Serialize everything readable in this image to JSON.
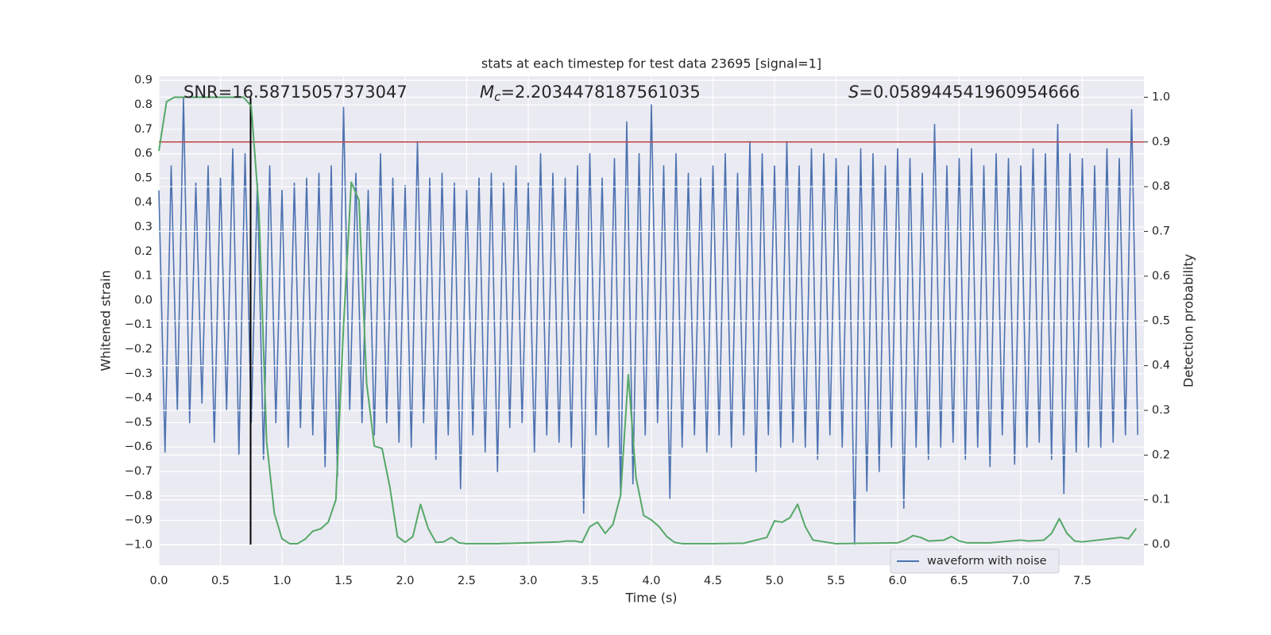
{
  "chart_data": {
    "type": "line",
    "title": "stats at each timestep for test data 23695 [signal=1]",
    "xlabel": "Time (s)",
    "ylabel": "Whitened strain",
    "y2label": "Detection probability",
    "annotations": [
      {
        "text": "SNR=16.58715057373047"
      },
      {
        "symbol": "M",
        "subscript": "c",
        "text": "=2.2034478187561035"
      },
      {
        "symbol": "S",
        "text": "=0.058944541960954666"
      }
    ],
    "xlim": [
      0,
      8.0
    ],
    "xticks": [
      {
        "value": 0,
        "label": "0.0"
      },
      0.5,
      {
        "value": 1,
        "label": "1.0"
      },
      1.5,
      {
        "value": 2,
        "label": "2.0"
      },
      2.5,
      {
        "value": 3,
        "label": "3.0"
      },
      3.5,
      {
        "value": 4,
        "label": "4.0"
      },
      4.5,
      {
        "value": 5,
        "label": "5.0"
      },
      5.5,
      {
        "value": 6,
        "label": "6.0"
      },
      6.5,
      {
        "value": 7,
        "label": "7.0"
      },
      7.5
    ],
    "ylim": [
      -1.083,
      0.917
    ],
    "yticks": [
      {
        "value": -1,
        "label": "−1.0"
      },
      {
        "value": -0.9,
        "label": "−0.9"
      },
      {
        "value": -0.8,
        "label": "−0.8"
      },
      {
        "value": -0.7,
        "label": "−0.7"
      },
      {
        "value": -0.6,
        "label": "−0.6"
      },
      {
        "value": -0.5,
        "label": "−0.5"
      },
      {
        "value": -0.4,
        "label": "−0.4"
      },
      {
        "value": -0.3,
        "label": "−0.3"
      },
      {
        "value": -0.2,
        "label": "−0.2"
      },
      {
        "value": -0.1,
        "label": "−0.1"
      },
      {
        "value": 0,
        "label": "0.0"
      },
      0.1,
      0.2,
      0.3,
      0.4,
      0.5,
      0.6,
      0.7,
      0.8,
      0.9
    ],
    "y2lim": [
      -0.046,
      1.047
    ],
    "y2ticks": [
      {
        "value": 0,
        "label": "0.0"
      },
      0.1,
      0.2,
      0.3,
      0.4,
      0.5,
      0.6,
      0.7,
      0.8,
      0.9,
      {
        "value": 1,
        "label": "1.0"
      }
    ],
    "grid": true,
    "legend": "lower right",
    "series": [
      {
        "name": "waveform with noise",
        "color": "#4c72b0",
        "x": [
          0,
          0.05,
          0.1,
          0.15,
          0.2,
          0.25,
          0.3,
          0.35,
          0.4,
          0.45,
          0.5,
          0.55,
          0.6,
          0.65,
          0.7,
          0.75,
          0.8,
          0.85,
          0.9,
          0.95,
          1,
          1.05,
          1.1,
          1.15,
          1.2,
          1.25,
          1.3,
          1.35,
          1.4,
          1.45,
          1.5,
          1.55,
          1.6,
          1.65,
          1.7,
          1.75,
          1.8,
          1.85,
          1.9,
          1.95,
          2,
          2.05,
          2.1,
          2.15,
          2.2,
          2.25,
          2.3,
          2.35,
          2.4,
          2.45,
          2.5,
          2.55,
          2.6,
          2.65,
          2.7,
          2.75,
          2.8,
          2.85,
          2.9,
          2.95,
          3,
          3.05,
          3.1,
          3.15,
          3.2,
          3.25,
          3.3,
          3.35,
          3.4,
          3.45,
          3.5,
          3.55,
          3.6,
          3.65,
          3.7,
          3.75,
          3.8,
          3.85,
          3.9,
          3.95,
          4,
          4.05,
          4.1,
          4.15,
          4.2,
          4.25,
          4.3,
          4.35,
          4.4,
          4.45,
          4.5,
          4.55,
          4.6,
          4.65,
          4.7,
          4.75,
          4.8,
          4.85,
          4.9,
          4.95,
          5,
          5.05,
          5.1,
          5.15,
          5.2,
          5.25,
          5.3,
          5.35,
          5.4,
          5.45,
          5.5,
          5.55,
          5.6,
          5.65,
          5.7,
          5.75,
          5.8,
          5.85,
          5.9,
          5.95,
          6,
          6.05,
          6.1,
          6.15,
          6.2,
          6.25,
          6.3,
          6.35,
          6.4,
          6.45,
          6.5,
          6.55,
          6.6,
          6.65,
          6.7,
          6.75,
          6.8,
          6.85,
          6.9,
          6.95,
          7,
          7.05,
          7.1,
          7.15,
          7.2,
          7.25,
          7.3,
          7.35,
          7.4,
          7.45,
          7.5,
          7.55,
          7.6,
          7.65,
          7.7,
          7.75,
          7.8,
          7.85,
          7.9,
          7.95
        ],
        "values": [
          0.45,
          -0.62,
          0.55,
          -0.45,
          0.83,
          -0.5,
          0.48,
          -0.42,
          0.55,
          -0.58,
          0.5,
          -0.45,
          0.62,
          -0.63,
          0.6,
          -0.5,
          0.48,
          -0.65,
          0.55,
          -0.5,
          0.45,
          -0.6,
          0.48,
          -0.52,
          0.5,
          -0.55,
          0.52,
          -0.68,
          0.55,
          -0.72,
          0.79,
          -0.45,
          0.52,
          -0.5,
          0.45,
          -0.55,
          0.6,
          -0.5,
          0.5,
          -0.58,
          0.47,
          -0.6,
          0.65,
          -0.5,
          0.5,
          -0.65,
          0.52,
          -0.55,
          0.48,
          -0.77,
          0.45,
          -0.55,
          0.5,
          -0.62,
          0.52,
          -0.7,
          0.48,
          -0.52,
          0.55,
          -0.5,
          0.48,
          -0.62,
          0.6,
          -0.55,
          0.52,
          -0.58,
          0.5,
          -0.6,
          0.55,
          -0.87,
          0.6,
          -0.55,
          0.5,
          -0.6,
          0.58,
          -0.8,
          0.73,
          -0.75,
          0.6,
          -0.55,
          0.8,
          -0.5,
          0.55,
          -0.81,
          0.6,
          -0.6,
          0.52,
          -0.55,
          0.5,
          -0.62,
          0.55,
          -0.55,
          0.6,
          -0.6,
          0.52,
          -0.55,
          0.65,
          -0.7,
          0.6,
          -0.55,
          0.55,
          -0.6,
          0.65,
          -0.58,
          0.55,
          -0.6,
          0.62,
          -0.65,
          0.6,
          -0.55,
          0.58,
          -0.6,
          0.55,
          -1.0,
          0.62,
          -0.78,
          0.6,
          -0.7,
          0.55,
          -0.6,
          0.62,
          -0.85,
          0.58,
          -0.6,
          0.52,
          -0.65,
          0.72,
          -0.6,
          0.55,
          -0.58,
          0.58,
          -0.65,
          0.62,
          -0.6,
          0.55,
          -0.68,
          0.6,
          -0.55,
          0.58,
          -0.67,
          0.55,
          -0.6,
          0.62,
          -0.58,
          0.6,
          -0.65,
          0.72,
          -0.79,
          0.6,
          -0.62,
          0.58,
          -0.6,
          0.55,
          -0.6,
          0.62,
          -0.58,
          0.58,
          -0.55,
          0.78,
          -0.55
        ]
      },
      {
        "color": "#55a868",
        "axis": "y2",
        "x": [
          0,
          0.0625,
          0.125,
          0.25,
          0.5,
          0.6875,
          0.75,
          0.8125,
          0.875,
          0.9375,
          1,
          1.0625,
          1.125,
          1.1875,
          1.25,
          1.3125,
          1.375,
          1.4375,
          1.5,
          1.5625,
          1.625,
          1.6875,
          1.75,
          1.8125,
          1.875,
          1.9375,
          2,
          2.0625,
          2.125,
          2.1875,
          2.25,
          2.3125,
          2.375,
          2.4375,
          2.5,
          2.75,
          3,
          3.25,
          3.3125,
          3.375,
          3.4375,
          3.5,
          3.5625,
          3.625,
          3.6875,
          3.75,
          3.8125,
          3.875,
          3.9375,
          4,
          4.0625,
          4.125,
          4.1875,
          4.25,
          4.5,
          4.75,
          4.9375,
          5,
          5.0625,
          5.125,
          5.1875,
          5.25,
          5.3125,
          5.5,
          5.75,
          6,
          6.0625,
          6.125,
          6.1875,
          6.25,
          6.375,
          6.4375,
          6.5,
          6.5625,
          6.75,
          7,
          7.0625,
          7.1875,
          7.25,
          7.3125,
          7.375,
          7.4375,
          7.5,
          7.6875,
          7.8125,
          7.875,
          7.9375
        ],
        "values": [
          0.88,
          0.99,
          1.0,
          1.0,
          1.0,
          1.0,
          0.98,
          0.75,
          0.23,
          0.07,
          0.013,
          0.002,
          0.002,
          0.012,
          0.03,
          0.035,
          0.05,
          0.1,
          0.49,
          0.81,
          0.77,
          0.36,
          0.22,
          0.215,
          0.13,
          0.018,
          0.005,
          0.018,
          0.09,
          0.036,
          0.005,
          0.006,
          0.016,
          0.004,
          0.002,
          0.002,
          0.004,
          0.006,
          0.008,
          0.008,
          0.005,
          0.04,
          0.05,
          0.025,
          0.045,
          0.11,
          0.38,
          0.15,
          0.065,
          0.055,
          0.04,
          0.018,
          0.005,
          0.002,
          0.002,
          0.003,
          0.016,
          0.053,
          0.05,
          0.06,
          0.09,
          0.04,
          0.01,
          0.002,
          0.003,
          0.004,
          0.01,
          0.02,
          0.016,
          0.008,
          0.01,
          0.018,
          0.008,
          0.004,
          0.004,
          0.01,
          0.008,
          0.01,
          0.025,
          0.058,
          0.025,
          0.008,
          0.006,
          0.012,
          0.016,
          0.013,
          0.036
        ]
      }
    ],
    "hlines": [
      {
        "y": 0.9,
        "axis": "y2",
        "color": "#c44e52"
      }
    ],
    "vlines": [
      {
        "x": 0.745,
        "ymin": 0,
        "ymax": 1,
        "axis": "y2",
        "color": "#000000"
      }
    ]
  }
}
